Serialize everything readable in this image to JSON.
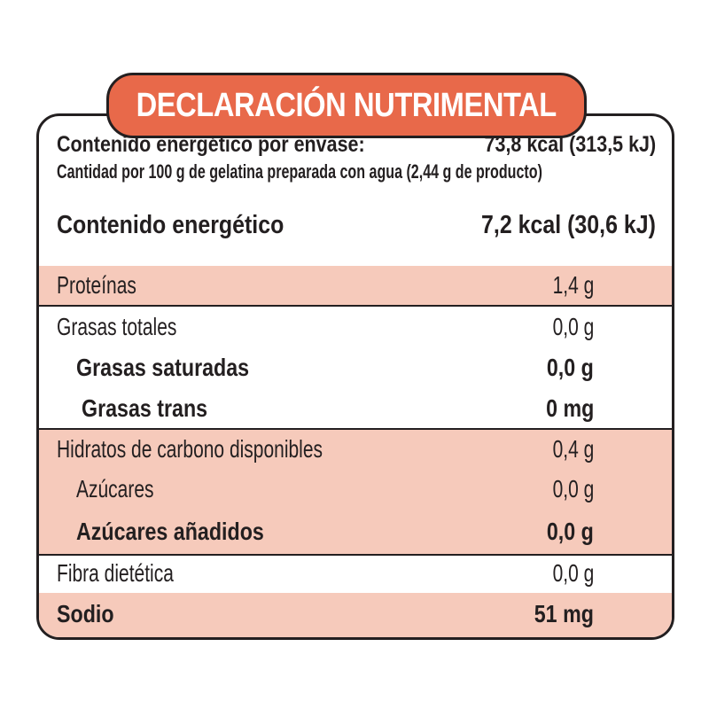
{
  "title": "DECLARACIÓN NUTRIMENTAL",
  "header": {
    "energy_per_package_label": "Contenido energético por envase:",
    "energy_per_package_value": "73,8 kcal (313,5 kJ)",
    "quantity_note": "Cantidad por 100 g de gelatina preparada con agua (2,44 g de producto)",
    "energy_label": "Contenido energético",
    "energy_value": "7,2 kcal (30,6 kJ)"
  },
  "nutrients": [
    {
      "label": "Proteínas",
      "value": "1,4 g"
    },
    {
      "label": "Grasas totales",
      "value": "0,0 g"
    },
    {
      "label": "Grasas saturadas",
      "value": "0,0 g"
    },
    {
      "label": "Grasas trans",
      "value": "0 mg"
    },
    {
      "label": "Hidratos de carbono disponibles",
      "value": "0,4 g"
    },
    {
      "label": "Azúcares",
      "value": "0,0 g"
    },
    {
      "label": "Azúcares añadidos",
      "value": "0,0 g"
    },
    {
      "label": "Fibra dietética",
      "value": "0,0 g"
    },
    {
      "label": "Sodio",
      "value": "51 mg"
    }
  ],
  "colors": {
    "title_background": "#e8694a",
    "row_shade": "#f6cabb",
    "border": "#231f20",
    "text": "#231f20"
  }
}
